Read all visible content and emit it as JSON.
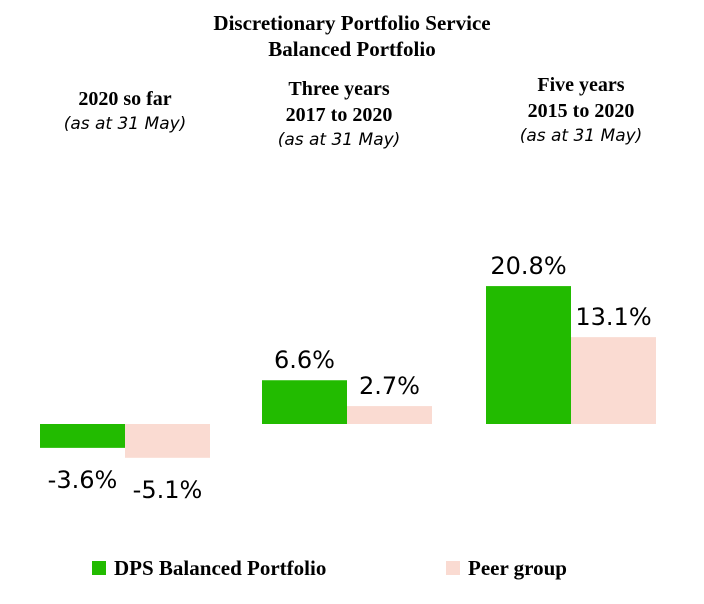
{
  "chart_data": {
    "type": "bar",
    "title": [
      "Discretionary Portfolio Service",
      "Balanced Portfolio"
    ],
    "categories": [
      {
        "lines": [
          "2020 so far"
        ],
        "note": "(as at 31 May)"
      },
      {
        "lines": [
          "Three years",
          "2017 to 2020"
        ],
        "note": "(as at 31 May)"
      },
      {
        "lines": [
          "Five years",
          "2015 to 2020"
        ],
        "note": "(as at 31 May)"
      }
    ],
    "series": [
      {
        "name": "DPS Balanced Portfolio",
        "color": "#22bb00",
        "values": [
          -3.6,
          6.6,
          20.8
        ],
        "labels": [
          "-3.6%",
          "6.6%",
          "20.8%"
        ]
      },
      {
        "name": "Peer group",
        "color": "#fadbd2",
        "values": [
          -5.1,
          2.7,
          13.1
        ],
        "labels": [
          "-5.1%",
          "2.7%",
          "13.1%"
        ]
      }
    ],
    "unit": "%",
    "grid": false,
    "legend": "bottom"
  }
}
